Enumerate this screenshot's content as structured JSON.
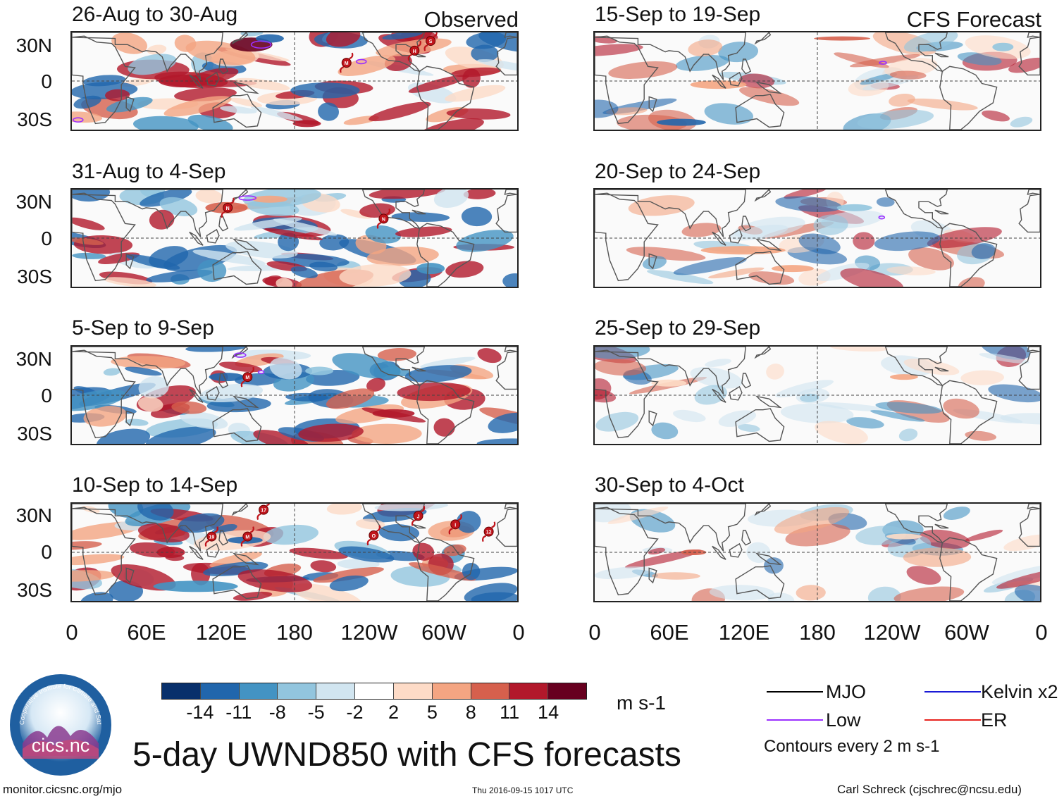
{
  "panels": [
    {
      "title": "26-Aug to 30-Aug",
      "tag": "Observed"
    },
    {
      "title": "15-Sep to 19-Sep",
      "tag": "CFS Forecast"
    },
    {
      "title": "31-Aug to 4-Sep",
      "tag": ""
    },
    {
      "title": "20-Sep to 24-Sep",
      "tag": ""
    },
    {
      "title": "5-Sep to 9-Sep",
      "tag": ""
    },
    {
      "title": "25-Sep to 29-Sep",
      "tag": ""
    },
    {
      "title": "10-Sep to 14-Sep",
      "tag": ""
    },
    {
      "title": "30-Sep to 4-Oct",
      "tag": ""
    }
  ],
  "lat_labels": [
    "30N",
    "0",
    "30S"
  ],
  "lon_labels": [
    "0",
    "60E",
    "120E",
    "180",
    "120W",
    "60W",
    "0"
  ],
  "colorbar": {
    "colors": [
      "#08306b",
      "#2166ac",
      "#4393c3",
      "#92c5de",
      "#d1e5f0",
      "#ffffff",
      "#fddbc7",
      "#f4a582",
      "#d6604d",
      "#b2182b",
      "#67001f"
    ],
    "ticks": [
      "-14",
      "-11",
      "-8",
      "-5",
      "-2",
      "2",
      "5",
      "8",
      "11",
      "14"
    ],
    "units": "m s-1"
  },
  "title": "5-day UWND850 with CFS forecasts",
  "legend": {
    "items": [
      {
        "label": "MJO",
        "color": "#000000"
      },
      {
        "label": "Kelvin x2",
        "color": "#1a1ad6"
      },
      {
        "label": "Low",
        "color": "#9b30ff"
      },
      {
        "label": "ER",
        "color": "#e8231e"
      }
    ],
    "contour_note": "Contours every 2 m s-1"
  },
  "storm_markers": {
    "p0": [
      "M",
      "H",
      "S"
    ],
    "p2": [
      "N",
      "N"
    ],
    "p4": [
      "M"
    ],
    "p6": [
      "17",
      "J",
      "I",
      "12",
      "19",
      "M",
      "O"
    ]
  },
  "logo": {
    "text": "cics.nc",
    "ring_text": "Cooperative Institute for Climate and Satellites"
  },
  "footer": {
    "left": "monitor.cicsnc.org/mjo",
    "center": "Thu 2016-09-15 1017 UTC",
    "right": "Carl Schreck (cjschrec@ncsu.edu)"
  }
}
